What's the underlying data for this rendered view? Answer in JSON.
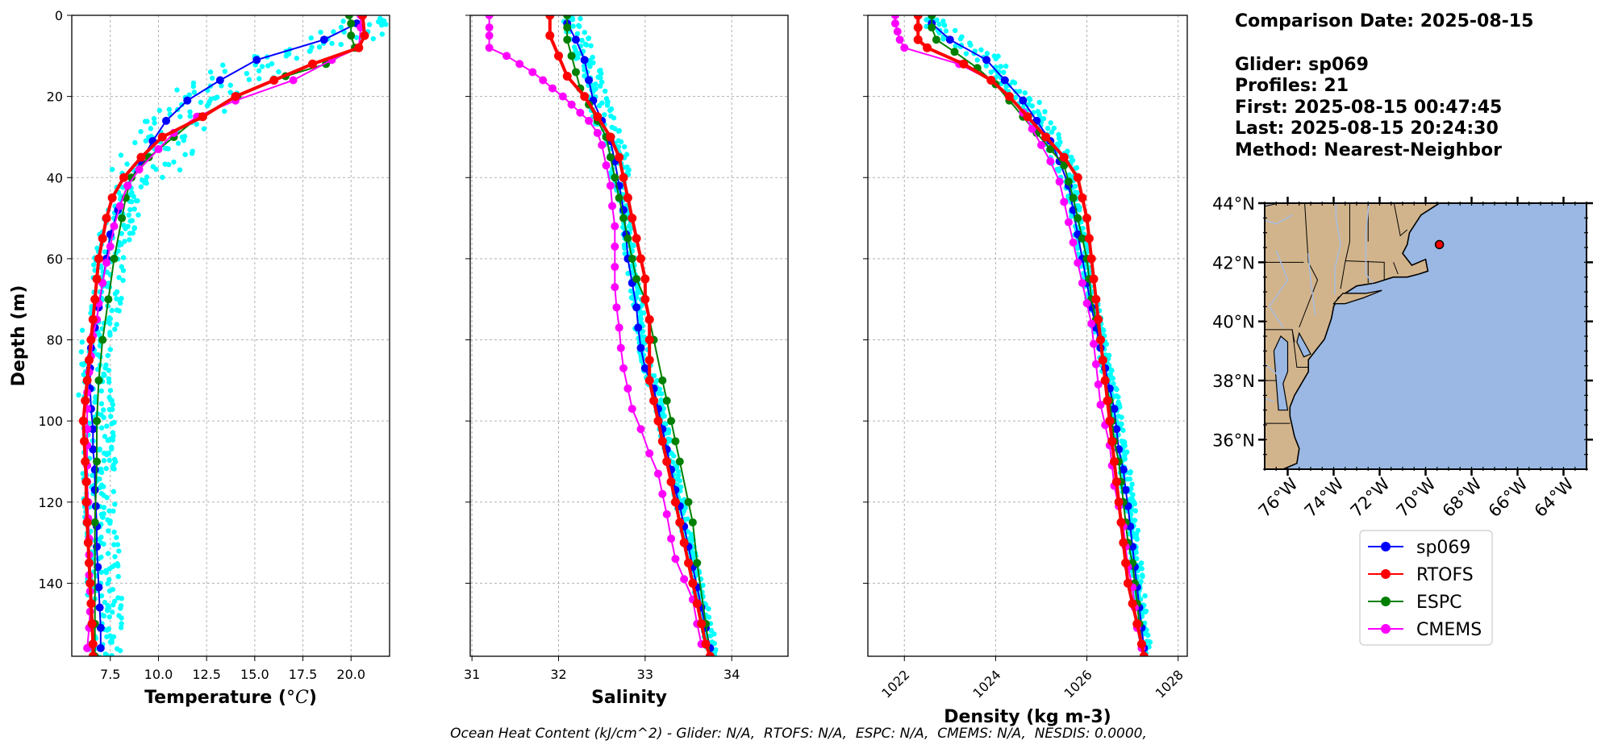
{
  "info": {
    "comparison_date": "Comparison Date: 2025-08-15",
    "glider": "Glider: sp069",
    "profiles": "Profiles: 21",
    "first": "First: 2025-08-15 00:47:45",
    "last": "Last: 2025-08-15 20:24:30",
    "method": "Method: Nearest-Neighbor"
  },
  "footer_text": "Ocean Heat Content (kJ/cm^2) - Glider: N/A,  RTOFS: N/A,  ESPC: N/A,  CMEMS: N/A,  NESDIS: 0.0000,",
  "colors": {
    "glider": "#0000ff",
    "rtofs": "#ff0000",
    "espc": "#008000",
    "cmems": "#ff00ff",
    "raw": "#00ffff",
    "land": "#d2b48c",
    "ocean": "#9ab8e3",
    "rivers": "#a7bde0"
  },
  "legend": [
    "sp069",
    "RTOFS",
    "ESPC",
    "CMEMS"
  ],
  "chart_data": [
    {
      "type": "line",
      "xlabel": "Temperature (°C)",
      "ylabel": "Depth (m)",
      "xlim": [
        5.5,
        22
      ],
      "ylim": [
        158,
        0
      ],
      "xticks": [
        7.5,
        10.0,
        12.5,
        15.0,
        17.5,
        20.0
      ],
      "xtick_labels": [
        "7.5",
        "10.0",
        "12.5",
        "15.0",
        "17.5",
        "20.0"
      ],
      "yticks": [
        0,
        20,
        40,
        60,
        80,
        100,
        120,
        140
      ],
      "grid": true,
      "series": [
        {
          "name": "sp069",
          "color": "#0000ff",
          "depth": [
            2,
            6,
            11,
            16,
            21,
            26,
            31,
            36,
            42,
            48,
            54,
            60,
            66,
            72,
            77,
            82,
            87,
            92,
            97,
            102,
            107,
            112,
            117,
            121,
            126,
            131,
            136,
            141,
            146,
            151,
            156
          ],
          "values": [
            20.3,
            18.6,
            15.1,
            13.2,
            11.5,
            10.4,
            9.7,
            9.1,
            8.4,
            7.9,
            7.5,
            7.3,
            7.1,
            6.9,
            6.7,
            6.5,
            6.45,
            6.45,
            6.5,
            6.6,
            6.6,
            6.7,
            6.7,
            6.75,
            6.8,
            6.8,
            6.85,
            6.9,
            6.95,
            7.0,
            7.0
          ]
        },
        {
          "name": "RTOFS",
          "color": "#ff0000",
          "depth": [
            0,
            5,
            8,
            12,
            16,
            20,
            25,
            30,
            35,
            40,
            45,
            50,
            55,
            60,
            65,
            70,
            75,
            80,
            85,
            90,
            95,
            100,
            105,
            110,
            115,
            120,
            125,
            130,
            135,
            140,
            145,
            150,
            155,
            158
          ],
          "values": [
            20.6,
            20.7,
            20.4,
            18.0,
            16.0,
            14.0,
            12.3,
            10.2,
            9.1,
            8.2,
            7.6,
            7.3,
            7.1,
            6.9,
            6.8,
            6.7,
            6.6,
            6.5,
            6.4,
            6.3,
            6.2,
            6.1,
            6.15,
            6.2,
            6.25,
            6.25,
            6.3,
            6.35,
            6.4,
            6.45,
            6.5,
            6.55,
            6.6,
            6.6
          ]
        },
        {
          "name": "ESPC",
          "color": "#008000",
          "depth": [
            0,
            2,
            5,
            8,
            12,
            15,
            20,
            25,
            30,
            35,
            40,
            45,
            50,
            60,
            70,
            80,
            90,
            100,
            110,
            125,
            150,
            158
          ],
          "values": [
            19.9,
            20.0,
            20.0,
            20.2,
            18.7,
            16.6,
            14.1,
            12.1,
            10.8,
            9.5,
            8.6,
            8.3,
            8.1,
            7.7,
            7.4,
            7.1,
            6.9,
            6.8,
            6.8,
            6.7,
            6.7,
            6.7
          ]
        },
        {
          "name": "CMEMS",
          "color": "#ff00ff",
          "depth": [
            0,
            3,
            8,
            11,
            16,
            21,
            25,
            29,
            33,
            38,
            42,
            47,
            52,
            57,
            61,
            66,
            71,
            75,
            79,
            84,
            88,
            93,
            97,
            102,
            106,
            111,
            115,
            120,
            124,
            129,
            133,
            138,
            142,
            147,
            151,
            156
          ],
          "values": [
            20.5,
            20.5,
            20.4,
            19.0,
            17.0,
            14.0,
            12.0,
            10.8,
            10.0,
            9.0,
            8.4,
            8.0,
            7.7,
            7.5,
            7.3,
            7.1,
            6.9,
            6.8,
            6.6,
            6.5,
            6.4,
            6.3,
            6.3,
            6.3,
            6.3,
            6.3,
            6.3,
            6.35,
            6.35,
            6.4,
            6.4,
            6.4,
            6.45,
            6.45,
            6.4,
            6.3
          ]
        }
      ]
    },
    {
      "type": "line",
      "xlabel": "Salinity",
      "xlim": [
        30.98,
        34.65
      ],
      "ylim": [
        158,
        0
      ],
      "xticks": [
        31,
        32,
        33,
        34
      ],
      "xtick_labels": [
        "31",
        "32",
        "33",
        "34"
      ],
      "yticks": [
        0,
        20,
        40,
        60,
        80,
        100,
        120,
        140
      ],
      "grid": true,
      "series": [
        {
          "name": "sp069",
          "color": "#0000ff",
          "depth": [
            2,
            6,
            11,
            16,
            21,
            26,
            31,
            36,
            42,
            48,
            54,
            60,
            66,
            72,
            77,
            82,
            87,
            92,
            97,
            102,
            107,
            112,
            117,
            121,
            126,
            131,
            136,
            141,
            146,
            151,
            156
          ],
          "values": [
            32.1,
            32.2,
            32.3,
            32.35,
            32.4,
            32.5,
            32.6,
            32.65,
            32.7,
            32.75,
            32.78,
            32.8,
            32.85,
            32.9,
            32.92,
            32.95,
            33.0,
            33.1,
            33.15,
            33.2,
            33.25,
            33.3,
            33.35,
            33.4,
            33.45,
            33.5,
            33.55,
            33.6,
            33.65,
            33.7,
            33.75
          ]
        },
        {
          "name": "RTOFS",
          "color": "#ff0000",
          "depth": [
            0,
            5,
            10,
            15,
            20,
            25,
            30,
            35,
            40,
            45,
            50,
            55,
            60,
            65,
            70,
            75,
            80,
            85,
            90,
            95,
            100,
            105,
            110,
            115,
            120,
            125,
            130,
            135,
            140,
            145,
            150,
            155,
            158
          ],
          "values": [
            31.9,
            31.9,
            32.0,
            32.1,
            32.3,
            32.45,
            32.6,
            32.7,
            32.75,
            32.8,
            32.85,
            32.9,
            32.95,
            33.0,
            33.0,
            33.05,
            33.05,
            33.05,
            33.05,
            33.1,
            33.15,
            33.2,
            33.25,
            33.3,
            33.35,
            33.4,
            33.45,
            33.5,
            33.55,
            33.6,
            33.65,
            33.7,
            33.75
          ]
        },
        {
          "name": "ESPC",
          "color": "#008000",
          "depth": [
            0,
            3,
            6,
            10,
            14,
            18,
            22,
            26,
            30,
            35,
            40,
            45,
            50,
            55,
            60,
            65,
            70,
            80,
            90,
            95,
            100,
            105,
            110,
            120,
            125,
            135,
            150,
            158
          ],
          "values": [
            32.1,
            32.1,
            32.1,
            32.15,
            32.2,
            32.25,
            32.35,
            32.45,
            32.55,
            32.6,
            32.65,
            32.7,
            32.75,
            32.8,
            32.85,
            32.9,
            33.0,
            33.1,
            33.2,
            33.25,
            33.3,
            33.35,
            33.4,
            33.5,
            33.55,
            33.6,
            33.7,
            33.75
          ]
        },
        {
          "name": "CMEMS",
          "color": "#ff00ff",
          "depth": [
            0,
            3,
            5,
            8,
            10,
            12,
            14,
            16,
            18,
            20,
            22,
            24,
            26,
            29,
            32,
            37,
            42,
            47,
            52,
            57,
            62,
            67,
            72,
            77,
            82,
            87,
            92,
            97,
            102,
            108,
            113,
            118,
            123,
            129,
            134,
            139,
            144,
            150,
            155
          ],
          "values": [
            31.2,
            31.2,
            31.2,
            31.2,
            31.4,
            31.55,
            31.7,
            31.82,
            31.93,
            32.05,
            32.15,
            32.25,
            32.35,
            32.45,
            32.5,
            32.55,
            32.6,
            32.62,
            32.65,
            32.65,
            32.65,
            32.65,
            32.67,
            32.7,
            32.72,
            32.75,
            32.8,
            32.85,
            32.95,
            33.05,
            33.15,
            33.2,
            33.25,
            33.3,
            33.35,
            33.45,
            33.55,
            33.6,
            33.65
          ]
        }
      ]
    },
    {
      "type": "line",
      "xlabel": "Density (kg m-3)",
      "xlim": [
        1021.2,
        1028.2
      ],
      "ylim": [
        158,
        0
      ],
      "xticks": [
        1022,
        1024,
        1026,
        1028
      ],
      "xtick_labels": [
        "1022",
        "1024",
        "1026",
        "1028"
      ],
      "yticks": [
        0,
        20,
        40,
        60,
        80,
        100,
        120,
        140
      ],
      "grid": true,
      "series": [
        {
          "name": "sp069",
          "color": "#0000ff",
          "depth": [
            2,
            6,
            11,
            16,
            21,
            26,
            31,
            36,
            42,
            48,
            54,
            60,
            66,
            72,
            77,
            82,
            87,
            92,
            97,
            102,
            107,
            112,
            117,
            121,
            126,
            131,
            136,
            141,
            146,
            151,
            156
          ],
          "values": [
            1022.6,
            1023.0,
            1023.8,
            1024.2,
            1024.6,
            1024.9,
            1025.2,
            1025.4,
            1025.6,
            1025.7,
            1025.8,
            1025.9,
            1026.0,
            1026.1,
            1026.2,
            1026.3,
            1026.4,
            1026.5,
            1026.6,
            1026.65,
            1026.7,
            1026.8,
            1026.85,
            1026.9,
            1026.95,
            1027.0,
            1027.05,
            1027.1,
            1027.15,
            1027.2,
            1027.25
          ]
        },
        {
          "name": "RTOFS",
          "color": "#ff0000",
          "depth": [
            0,
            3,
            6,
            8,
            12,
            16,
            20,
            25,
            30,
            35,
            40,
            45,
            50,
            55,
            60,
            65,
            70,
            75,
            80,
            85,
            90,
            95,
            100,
            105,
            110,
            115,
            120,
            125,
            130,
            135,
            140,
            145,
            150,
            155,
            158
          ],
          "values": [
            1022.3,
            1022.3,
            1022.3,
            1022.5,
            1023.3,
            1023.9,
            1024.3,
            1024.7,
            1025.1,
            1025.5,
            1025.8,
            1025.9,
            1026.0,
            1026.05,
            1026.1,
            1026.15,
            1026.2,
            1026.25,
            1026.3,
            1026.35,
            1026.4,
            1026.45,
            1026.5,
            1026.55,
            1026.6,
            1026.65,
            1026.7,
            1026.75,
            1026.8,
            1026.85,
            1026.9,
            1027.0,
            1027.1,
            1027.2,
            1027.25
          ]
        },
        {
          "name": "ESPC",
          "color": "#008000",
          "depth": [
            0,
            3,
            6,
            9,
            13,
            17,
            21,
            25,
            29,
            33,
            37,
            41,
            45,
            50,
            55,
            60,
            65,
            70,
            75,
            80,
            85,
            90,
            95,
            100,
            105,
            110,
            115,
            120,
            125,
            130,
            135,
            140,
            145,
            150,
            155,
            158
          ],
          "values": [
            1022.6,
            1022.6,
            1022.7,
            1023.1,
            1023.6,
            1024.0,
            1024.3,
            1024.6,
            1024.9,
            1025.2,
            1025.5,
            1025.6,
            1025.7,
            1025.8,
            1025.9,
            1026.0,
            1026.05,
            1026.1,
            1026.2,
            1026.3,
            1026.35,
            1026.4,
            1026.5,
            1026.55,
            1026.6,
            1026.7,
            1026.75,
            1026.8,
            1026.85,
            1026.9,
            1027.0,
            1027.05,
            1027.1,
            1027.15,
            1027.2,
            1027.25
          ]
        },
        {
          "name": "CMEMS",
          "color": "#ff00ff",
          "depth": [
            0,
            2,
            4,
            6,
            8,
            12,
            16,
            20,
            24,
            28,
            32,
            36,
            41,
            46,
            51,
            56,
            61,
            66,
            71,
            76,
            81,
            86,
            91,
            96,
            101,
            106,
            111,
            116,
            121,
            126,
            131,
            136,
            141,
            146,
            151,
            156
          ],
          "values": [
            1021.8,
            1021.8,
            1021.85,
            1021.9,
            1022.0,
            1023.2,
            1023.9,
            1024.3,
            1024.6,
            1024.8,
            1025.0,
            1025.2,
            1025.4,
            1025.5,
            1025.6,
            1025.7,
            1025.8,
            1025.9,
            1026.0,
            1026.1,
            1026.15,
            1026.2,
            1026.25,
            1026.3,
            1026.4,
            1026.5,
            1026.55,
            1026.6,
            1026.7,
            1026.8,
            1026.85,
            1026.9,
            1027.0,
            1027.05,
            1027.1,
            1027.2
          ]
        }
      ]
    },
    {
      "type": "map",
      "lon_range": [
        -77,
        -63
      ],
      "lat_range": [
        35,
        44
      ],
      "xtick_labels": [
        "76°W",
        "74°W",
        "72°W",
        "70°W",
        "68°W",
        "66°W",
        "64°W"
      ],
      "xticks": [
        -76,
        -74,
        -72,
        -70,
        -68,
        -66,
        -64
      ],
      "ytick_labels": [
        "36°N",
        "38°N",
        "40°N",
        "42°N",
        "44°N"
      ],
      "yticks": [
        36,
        38,
        40,
        42,
        44
      ],
      "glider_position": {
        "lon": -69.4,
        "lat": 42.6
      }
    }
  ]
}
